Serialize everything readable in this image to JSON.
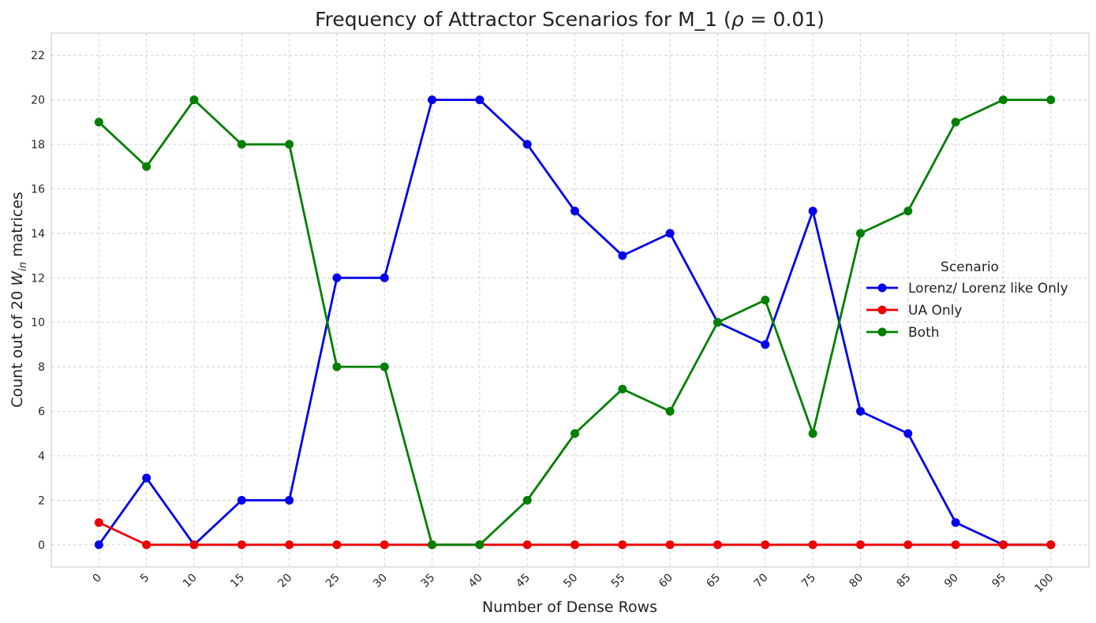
{
  "chart_data": {
    "type": "line",
    "title_text": "Frequency of Attractor Scenarios for M_1 (",
    "title_symbol": "ρ",
    "title_tail": " = 0.01)",
    "xlabel": "Number of Dense Rows",
    "ylabel_prefix": "Count out of 20 ",
    "ylabel_symbol": "W",
    "ylabel_sub": "in",
    "ylabel_suffix": " matrices",
    "x": [
      0,
      5,
      10,
      15,
      20,
      25,
      30,
      35,
      40,
      45,
      50,
      55,
      60,
      65,
      70,
      75,
      80,
      85,
      90,
      95,
      100
    ],
    "x_tick_labels": [
      "0",
      "5",
      "10",
      "15",
      "20",
      "25",
      "30",
      "35",
      "40",
      "45",
      "50",
      "55",
      "60",
      "65",
      "70",
      "75",
      "80",
      "85",
      "90",
      "95",
      "100"
    ],
    "y_ticks": [
      0,
      2,
      4,
      6,
      8,
      10,
      12,
      14,
      16,
      18,
      20,
      22
    ],
    "y_tick_labels": [
      "0",
      "2",
      "4",
      "6",
      "8",
      "10",
      "12",
      "14",
      "16",
      "18",
      "20",
      "22"
    ],
    "xlim": [
      -5,
      104
    ],
    "ylim": [
      -1,
      23
    ],
    "grid": true,
    "legend_title": "Scenario",
    "legend_position": "center-right",
    "series": [
      {
        "name": "Lorenz/ Lorenz like Only",
        "color": "#0000ee",
        "values": [
          0,
          3,
          0,
          2,
          2,
          12,
          12,
          20,
          20,
          18,
          15,
          13,
          14,
          10,
          9,
          15,
          6,
          5,
          1,
          0,
          0
        ]
      },
      {
        "name": "UA Only",
        "color": "#ee0000",
        "values": [
          1,
          0,
          0,
          0,
          0,
          0,
          0,
          0,
          0,
          0,
          0,
          0,
          0,
          0,
          0,
          0,
          0,
          0,
          0,
          0,
          0
        ]
      },
      {
        "name": "Both",
        "color": "#007f00",
        "values": [
          19,
          17,
          20,
          18,
          18,
          8,
          8,
          0,
          0,
          2,
          5,
          7,
          6,
          10,
          11,
          5,
          14,
          15,
          19,
          20,
          20
        ]
      }
    ]
  }
}
